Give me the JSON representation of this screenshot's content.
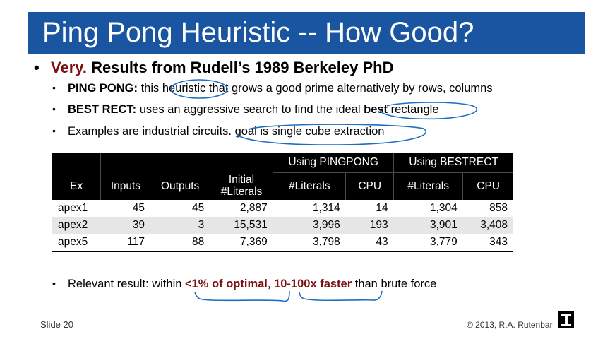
{
  "title": "Ping Pong Heuristic -- How Good?",
  "bullet_main": {
    "accent": "Very.",
    "text": " Results from Rudell’s 1989 Berkeley PhD"
  },
  "bullets": [
    {
      "bold": "PING PONG:",
      "text": "  this heuristic that grows a good prime alternatively by rows, columns"
    },
    {
      "bold": "BEST RECT:",
      "text_before": " uses an aggressive search to find the ideal ",
      "bold_inline": "best",
      "text_after": " rectangle"
    },
    {
      "text": "Examples are industrial circuits.  goal is single cube extraction"
    }
  ],
  "table": {
    "group_headers": [
      "Using PINGPONG",
      "Using BESTRECT"
    ],
    "columns": {
      "ex": "Ex",
      "inputs": "Inputs",
      "outputs": "Outputs",
      "initial_line1": "Initial",
      "initial_line2": "#Literals",
      "pp_literals": "#Literals",
      "pp_cpu": "CPU",
      "br_literals": "#Literals",
      "br_cpu": "CPU"
    },
    "rows": [
      [
        "apex1",
        "45",
        "45",
        "2,887",
        "1,314",
        "14",
        "1,304",
        "858"
      ],
      [
        "apex2",
        "39",
        "3",
        "15,531",
        "3,996",
        "193",
        "3,901",
        "3,408"
      ],
      [
        "apex5",
        "117",
        "88",
        "7,369",
        "3,798",
        "43",
        "3,779",
        "343"
      ]
    ]
  },
  "bullet_result": {
    "text1": "Relevant result:  within ",
    "red1": "<1% of optimal",
    "text2": ", ",
    "red2": "10-100x faster",
    "text3": " than brute force"
  },
  "footer": {
    "slide": "Slide 20",
    "copyright": "© 2013, R.A. Rutenbar"
  },
  "colors": {
    "title_bar": "#1a55a2",
    "accent": "#7b1010",
    "annotation": "#1f6fc0"
  }
}
